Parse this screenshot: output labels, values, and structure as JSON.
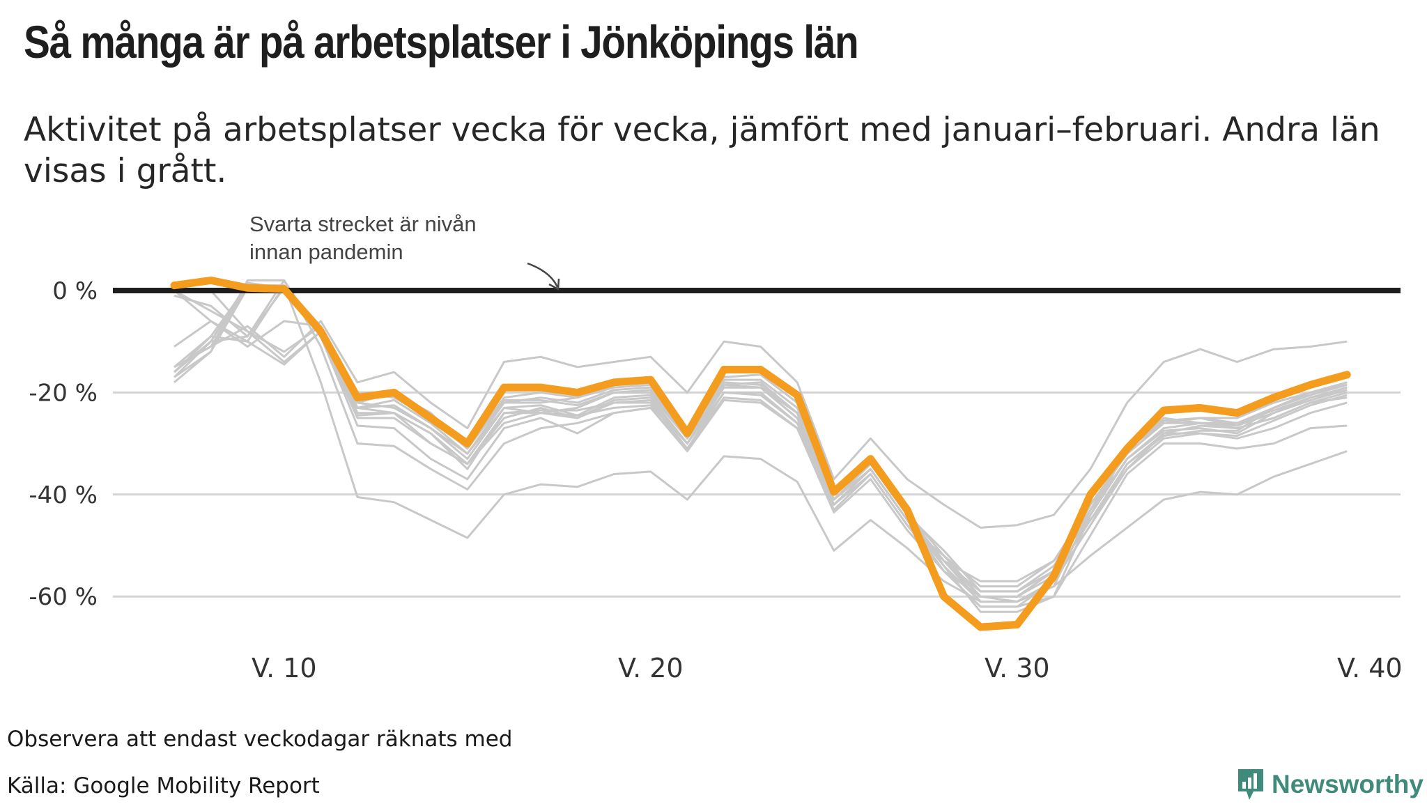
{
  "header": {
    "title": "Så många är på arbetsplatser i Jönköpings län",
    "subtitle": "Aktivitet på arbetsplatser vecka för vecka, jämfört med januari–februari. Andra län visas i grått."
  },
  "footer": {
    "note": "Observera att endast veckodagar räknats med",
    "source": "Källa: Google Mobility Report",
    "brand": "Newsworthy"
  },
  "colors": {
    "highlight": "#f39c1e",
    "others": "#c8c8c8",
    "baseline": "#1e1e1e",
    "grid": "#d4d4d4",
    "brand": "#3f8a7a"
  },
  "icons": {
    "brand": "newsworthy-logo-icon",
    "annotation_arrow": "curved-arrow-icon"
  },
  "chart_data": {
    "type": "line",
    "title": "Så många är på arbetsplatser i Jönköpings län",
    "subtitle": "Aktivitet på arbetsplatser vecka för vecka, jämfört med januari–februari. Andra län visas i grått.",
    "xlabel": "",
    "ylabel": "",
    "xlim": [
      7,
      39
    ],
    "ylim": [
      -70,
      5
    ],
    "x": [
      7,
      8,
      9,
      10,
      11,
      12,
      13,
      14,
      15,
      16,
      17,
      18,
      19,
      20,
      21,
      22,
      23,
      24,
      25,
      26,
      27,
      28,
      29,
      30,
      31,
      32,
      33,
      34,
      35,
      36,
      37,
      38,
      39
    ],
    "x_ticks": [
      {
        "value": 10,
        "label": "V. 10"
      },
      {
        "value": 20,
        "label": "V. 20"
      },
      {
        "value": 30,
        "label": "V. 30"
      },
      {
        "value": 40,
        "label": "V. 40"
      }
    ],
    "y_ticks": [
      {
        "value": 0,
        "label": "0 %"
      },
      {
        "value": -20,
        "label": "-20 %"
      },
      {
        "value": -40,
        "label": "-40 %"
      },
      {
        "value": -60,
        "label": "-60 %"
      }
    ],
    "grid": true,
    "baseline": 0,
    "annotation": {
      "text_line1": "Svarta strecket är nivån",
      "text_line2": "innan pandemin",
      "x": 17.5,
      "y": 0
    },
    "highlight": {
      "name": "Jönköpings län",
      "values": [
        1,
        2,
        0.5,
        0.3,
        -8,
        -21,
        -20,
        -25,
        -30,
        -19,
        -19,
        -20,
        -18,
        -17.5,
        -28,
        -15.5,
        -15.5,
        -20.5,
        -39.5,
        -33,
        -43,
        -60,
        -66,
        -65.5,
        -56,
        -40,
        -31,
        -23.5,
        -23,
        -24,
        -21,
        -18.5,
        -16.5
      ]
    },
    "others": [
      {
        "values": [
          -15,
          -11,
          -7,
          -13,
          -6,
          -18,
          -16,
          -22,
          -27,
          -14,
          -13,
          -15,
          -14,
          -13,
          -20,
          -10,
          -11,
          -18,
          -37,
          -29,
          -37,
          -42,
          -46.5,
          -46,
          -44,
          -35,
          -22,
          -14,
          -11.5,
          -14,
          -11.5,
          -11,
          -10
        ]
      },
      {
        "values": [
          -16,
          -9,
          -10,
          1,
          -18,
          -40.5,
          -41.5,
          -45,
          -48.5,
          -40,
          -38,
          -38.5,
          -36,
          -35.5,
          -41,
          -32.5,
          -33,
          -37.5,
          -51,
          -45,
          -50.5,
          -57,
          -61,
          -61,
          -58,
          -52,
          -46.5,
          -41,
          -39.5,
          -40,
          -36.5,
          -34,
          -31.5
        ]
      },
      {
        "values": [
          -17,
          -12,
          2,
          2,
          -11,
          -30,
          -30.5,
          -35,
          -39,
          -30,
          -27,
          -26,
          -24,
          -23,
          -31,
          -20,
          -20,
          -26,
          -42,
          -35,
          -45,
          -55,
          -62,
          -62,
          -60,
          -48,
          -36,
          -30,
          -30,
          -31,
          -30,
          -27,
          -26.5
        ]
      },
      {
        "values": [
          -17,
          -10,
          1,
          1,
          -9,
          -25,
          -25,
          -30,
          -34,
          -25,
          -23,
          -25,
          -22,
          -21.5,
          -30,
          -19,
          -19,
          -24,
          -41,
          -34,
          -44,
          -53,
          -60,
          -61,
          -57,
          -44,
          -33,
          -27.5,
          -27,
          -28,
          -24,
          -21.5,
          -19.5
        ]
      },
      {
        "values": [
          -16,
          -10,
          1.5,
          0.5,
          -8,
          -24,
          -24,
          -28,
          -35,
          -24,
          -24,
          -25,
          -21.5,
          -21,
          -30,
          -18.5,
          -18,
          -24,
          -41,
          -35,
          -45,
          -54,
          -61,
          -61,
          -57,
          -46,
          -34,
          -28,
          -26.5,
          -27,
          -25,
          -22,
          -20
        ]
      },
      {
        "values": [
          -15,
          -11,
          1,
          1,
          -7,
          -22,
          -23,
          -27,
          -33,
          -23,
          -24,
          -23,
          -20,
          -20,
          -29,
          -19,
          -19,
          -25,
          -42,
          -36,
          -46,
          -52,
          -58,
          -58,
          -53,
          -42,
          -32,
          -26,
          -25,
          -26,
          -23,
          -20.5,
          -18.5
        ]
      },
      {
        "values": [
          -15,
          -9,
          1,
          0.5,
          -8,
          -23,
          -21.5,
          -26,
          -32,
          -22,
          -21,
          -22,
          -19.5,
          -19,
          -28,
          -18,
          -18.5,
          -24,
          -40,
          -34,
          -44,
          -51,
          -59,
          -59,
          -55,
          -43,
          -31,
          -25.5,
          -25,
          -25,
          -22,
          -20,
          -18
        ]
      },
      {
        "values": [
          -11,
          -6,
          -11,
          -6,
          -7,
          -20,
          -20,
          -24,
          -31,
          -21,
          -20,
          -21,
          -18,
          -17.5,
          -27,
          -17,
          -16.5,
          -22,
          -39,
          -33,
          -43,
          -54,
          -63,
          -63,
          -60,
          -44,
          -31,
          -25,
          -26,
          -27,
          -25,
          -22,
          -21
        ]
      },
      {
        "values": [
          -18,
          -12,
          0.5,
          0.3,
          -9,
          -26.5,
          -27,
          -33,
          -37,
          -27,
          -25,
          -28,
          -24,
          -23,
          -31.5,
          -21.5,
          -22,
          -27,
          -43.5,
          -37,
          -47,
          -55,
          -60,
          -60,
          -56,
          -45,
          -35,
          -29,
          -28,
          -29,
          -27,
          -24,
          -22
        ]
      },
      {
        "values": [
          -16,
          -10,
          -9,
          0.5,
          -8,
          -24.5,
          -24,
          -30,
          -34,
          -26,
          -24,
          -24.5,
          -23,
          -22.5,
          -30,
          -20,
          -20.5,
          -26,
          -42,
          -35,
          -45,
          -53,
          -57,
          -57,
          -53,
          -45,
          -34,
          -28.5,
          -27.5,
          -27.5,
          -23,
          -20,
          -18.5
        ]
      },
      {
        "values": [
          0,
          0,
          -8,
          -12,
          -7,
          -22,
          -20,
          -25,
          -30.5,
          -22,
          -22,
          -21,
          -19,
          -18.5,
          -28,
          -17.5,
          -17.5,
          -23,
          -40,
          -34,
          -44,
          -53,
          -59,
          -59,
          -54,
          -43,
          -31,
          -26,
          -25,
          -26.5,
          -23,
          -20,
          -18
        ]
      },
      {
        "values": [
          0,
          -4,
          -8,
          -14,
          -8,
          -23,
          -22.5,
          -27,
          -32,
          -23,
          -22.5,
          -24.5,
          -21,
          -20.5,
          -29,
          -19,
          -19,
          -25,
          -41,
          -34,
          -44,
          -53,
          -61,
          -61,
          -58,
          -43,
          -33,
          -27,
          -26,
          -26.5,
          -24,
          -21,
          -19.5
        ]
      },
      {
        "values": [
          0,
          -6,
          -10,
          -14.5,
          -8,
          -20,
          -21,
          -25,
          -31,
          -21.5,
          -21.5,
          -22.5,
          -20,
          -19.5,
          -29,
          -18.5,
          -19,
          -24,
          -40,
          -34,
          -43.5,
          -52,
          -60,
          -60,
          -55,
          -42,
          -32,
          -26,
          -26,
          -26,
          -23.5,
          -21,
          -19
        ]
      },
      {
        "values": [
          -1,
          -3,
          -9,
          2,
          -9,
          -23,
          -24,
          -28,
          -34,
          -24,
          -23.5,
          -23.5,
          -22,
          -22,
          -31,
          -21,
          -21.5,
          -27,
          -43,
          -36,
          -46,
          -55,
          -62,
          -62,
          -57,
          -46,
          -35,
          -28,
          -28,
          -28.5,
          -25.5,
          -22.5,
          -20.5
        ]
      }
    ]
  }
}
